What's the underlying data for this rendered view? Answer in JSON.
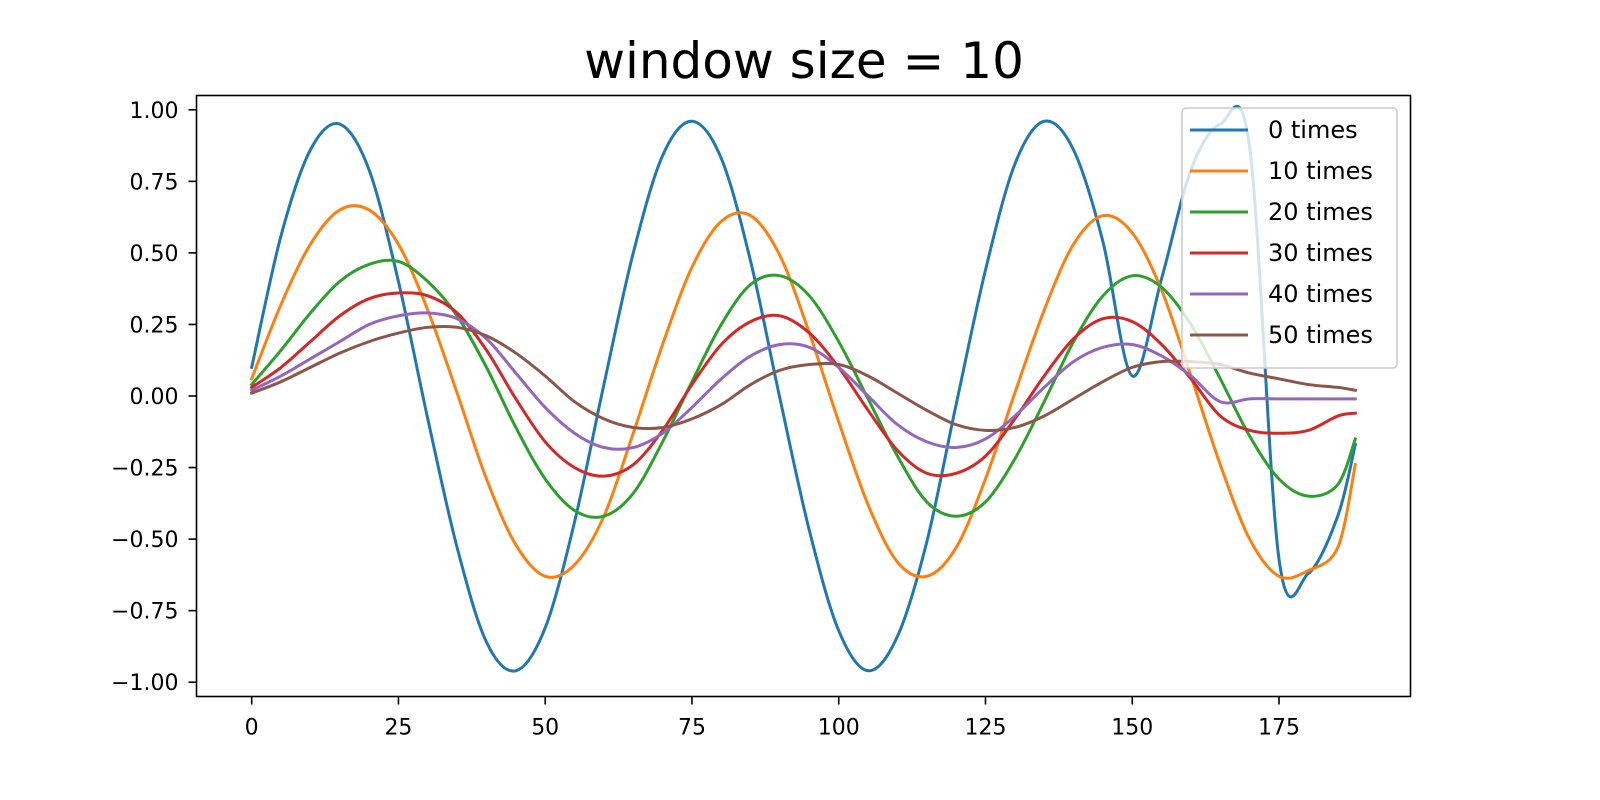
{
  "chart_data": {
    "type": "line",
    "title": "window size = 10",
    "xlabel": "",
    "ylabel": "",
    "xlim": [
      -9.4,
      197.4
    ],
    "ylim": [
      -1.05,
      1.05
    ],
    "xticks": [
      0,
      25,
      50,
      75,
      100,
      125,
      150,
      175
    ],
    "xtick_labels": [
      "0",
      "25",
      "50",
      "75",
      "100",
      "125",
      "150",
      "175"
    ],
    "yticks": [
      1.0,
      0.75,
      0.5,
      0.25,
      0.0,
      -0.25,
      -0.5,
      -0.75,
      -1.0
    ],
    "ytick_labels": [
      "1.00",
      "0.75",
      "0.50",
      "0.25",
      "0.00",
      "−0.25",
      "−0.50",
      "−0.75",
      "−1.00"
    ],
    "grid": false,
    "legend_position": "top-right",
    "x": [
      0,
      5,
      10,
      15,
      20,
      25,
      30,
      35,
      40,
      45,
      50,
      55,
      60,
      65,
      70,
      75,
      80,
      85,
      90,
      95,
      100,
      105,
      110,
      115,
      120,
      125,
      130,
      135,
      140,
      145,
      150,
      155,
      160,
      165,
      170,
      175,
      180,
      185,
      188
    ],
    "series": [
      {
        "name": "0 times",
        "color": "#1f77b4",
        "values": [
          0.1,
          0.56,
          0.86,
          0.95,
          0.79,
          0.4,
          -0.08,
          -0.53,
          -0.86,
          -0.96,
          -0.81,
          -0.44,
          0.04,
          0.5,
          0.84,
          0.96,
          0.83,
          0.47,
          -0.01,
          -0.47,
          -0.82,
          -0.96,
          -0.84,
          -0.51,
          -0.03,
          0.44,
          0.81,
          0.96,
          0.86,
          0.54,
          0.07,
          0.41,
          0.79,
          0.95,
          0.87,
          -0.57,
          -0.62,
          -0.42,
          -0.17
        ]
      },
      {
        "name": "10 times",
        "color": "#ff7f0e",
        "values": [
          0.06,
          0.32,
          0.53,
          0.65,
          0.65,
          0.53,
          0.3,
          0.01,
          -0.29,
          -0.52,
          -0.63,
          -0.59,
          -0.42,
          -0.13,
          0.18,
          0.45,
          0.61,
          0.63,
          0.49,
          0.22,
          -0.09,
          -0.38,
          -0.58,
          -0.63,
          -0.53,
          -0.29,
          0.01,
          0.3,
          0.53,
          0.63,
          0.57,
          0.37,
          0.07,
          -0.24,
          -0.5,
          -0.63,
          -0.61,
          -0.53,
          -0.24
        ]
      },
      {
        "name": "20 times",
        "color": "#2ca02c",
        "values": [
          0.04,
          0.16,
          0.29,
          0.4,
          0.46,
          0.47,
          0.4,
          0.28,
          0.1,
          -0.11,
          -0.29,
          -0.4,
          -0.42,
          -0.34,
          -0.16,
          0.05,
          0.25,
          0.39,
          0.42,
          0.35,
          0.19,
          -0.01,
          -0.21,
          -0.37,
          -0.42,
          -0.37,
          -0.22,
          -0.02,
          0.19,
          0.35,
          0.42,
          0.38,
          0.25,
          0.06,
          -0.14,
          -0.29,
          -0.35,
          -0.31,
          -0.15
        ]
      },
      {
        "name": "30 times",
        "color": "#d62728",
        "values": [
          0.03,
          0.1,
          0.19,
          0.28,
          0.34,
          0.36,
          0.35,
          0.29,
          0.16,
          -0.01,
          -0.16,
          -0.25,
          -0.28,
          -0.24,
          -0.12,
          0.04,
          0.18,
          0.26,
          0.28,
          0.22,
          0.1,
          -0.05,
          -0.19,
          -0.27,
          -0.27,
          -0.21,
          -0.08,
          0.07,
          0.2,
          0.27,
          0.26,
          0.18,
          0.06,
          -0.07,
          -0.12,
          -0.13,
          -0.12,
          -0.07,
          -0.06
        ]
      },
      {
        "name": "40 times",
        "color": "#9467bd",
        "values": [
          0.02,
          0.07,
          0.13,
          0.19,
          0.25,
          0.28,
          0.29,
          0.27,
          0.2,
          0.08,
          -0.04,
          -0.13,
          -0.18,
          -0.18,
          -0.13,
          -0.04,
          0.06,
          0.14,
          0.18,
          0.17,
          0.1,
          0.0,
          -0.1,
          -0.16,
          -0.18,
          -0.15,
          -0.07,
          0.03,
          0.12,
          0.17,
          0.18,
          0.14,
          0.07,
          -0.02,
          -0.01,
          -0.01,
          -0.01,
          -0.01,
          -0.01
        ]
      },
      {
        "name": "50 times",
        "color": "#8c564b",
        "values": [
          0.01,
          0.05,
          0.1,
          0.15,
          0.19,
          0.22,
          0.24,
          0.24,
          0.21,
          0.15,
          0.07,
          -0.02,
          -0.08,
          -0.11,
          -0.11,
          -0.08,
          -0.03,
          0.04,
          0.09,
          0.11,
          0.11,
          0.07,
          0.01,
          -0.05,
          -0.1,
          -0.12,
          -0.11,
          -0.07,
          -0.01,
          0.05,
          0.1,
          0.12,
          0.12,
          0.11,
          0.08,
          0.06,
          0.04,
          0.03,
          0.02
        ]
      }
    ]
  }
}
